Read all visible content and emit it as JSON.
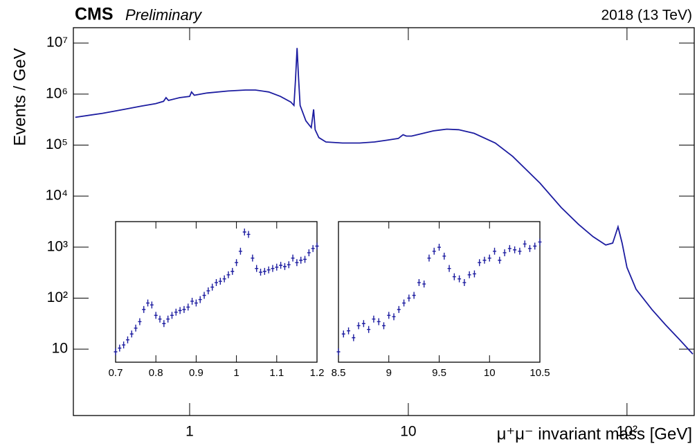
{
  "chart_data": [
    {
      "type": "line",
      "experiment": "CMS",
      "status": "Preliminary",
      "energy_label": "2018 (13 TeV)",
      "ylabel": "Events / GeV",
      "xlabel": "μ⁺μ⁻ invariant mass [GeV]",
      "color": "#1c1ca0",
      "xlog": true,
      "ylog": true,
      "xlim": [
        0.294,
        203
      ],
      "ylim": [
        0.5,
        20000000
      ],
      "xticks": [
        1,
        10,
        {
          "value": 100,
          "label": "10²"
        }
      ],
      "yticks": [
        10,
        {
          "value": 100,
          "label": "10²"
        },
        {
          "value": 1000,
          "label": "10³"
        },
        {
          "value": 10000,
          "label": "10⁴"
        },
        {
          "value": 100000,
          "label": "10⁵"
        },
        {
          "value": 1000000,
          "label": "10⁶"
        },
        {
          "value": 10000000,
          "label": "10⁷"
        }
      ],
      "x": [
        0.3,
        0.4,
        0.5,
        0.6,
        0.7,
        0.76,
        0.78,
        0.8,
        0.9,
        1.0,
        1.02,
        1.05,
        1.2,
        1.5,
        1.8,
        2.0,
        2.3,
        2.6,
        2.9,
        3.0,
        3.05,
        3.1,
        3.15,
        3.2,
        3.4,
        3.6,
        3.69,
        3.75,
        3.9,
        4.2,
        5,
        6,
        7,
        8,
        9,
        9.46,
        9.8,
        10.35,
        11,
        13,
        15,
        17,
        20,
        25,
        30,
        40,
        50,
        60,
        70,
        80,
        86,
        91,
        95,
        100,
        110,
        130,
        150,
        175,
        200
      ],
      "values": [
        350000,
        420000,
        500000,
        580000,
        650000,
        720000,
        850000,
        750000,
        850000,
        900000,
        1100000,
        950000,
        1050000,
        1150000,
        1200000,
        1200000,
        1100000,
        900000,
        700000,
        600000,
        2000000,
        8000000,
        2000000,
        600000,
        300000,
        220000,
        500000,
        200000,
        140000,
        115000,
        110000,
        110000,
        115000,
        125000,
        135000,
        160000,
        150000,
        150000,
        160000,
        190000,
        205000,
        200000,
        170000,
        110000,
        60000,
        18000,
        6000,
        2800,
        1600,
        1100,
        1200,
        2500,
        1200,
        400,
        150,
        60,
        30,
        15,
        8
      ]
    },
    {
      "type": "scatter",
      "color": "#1c1ca0",
      "xlog": false,
      "ylog": true,
      "xlim": [
        0.7,
        1.2
      ],
      "ylim": [
        3,
        3000
      ],
      "xticks": [
        0.7,
        0.8,
        0.9,
        1,
        1.1,
        1.2
      ],
      "x": [
        0.7,
        0.71,
        0.72,
        0.73,
        0.74,
        0.75,
        0.76,
        0.77,
        0.78,
        0.79,
        0.8,
        0.81,
        0.82,
        0.83,
        0.84,
        0.85,
        0.86,
        0.87,
        0.88,
        0.89,
        0.9,
        0.91,
        0.92,
        0.93,
        0.94,
        0.95,
        0.96,
        0.97,
        0.98,
        0.99,
        1.0,
        1.01,
        1.02,
        1.03,
        1.04,
        1.05,
        1.06,
        1.07,
        1.08,
        1.09,
        1.1,
        1.11,
        1.12,
        1.13,
        1.14,
        1.15,
        1.16,
        1.17,
        1.18,
        1.19,
        1.2
      ],
      "values": [
        5,
        6,
        7,
        9,
        12,
        16,
        22,
        40,
        55,
        50,
        30,
        25,
        20,
        25,
        30,
        35,
        38,
        40,
        45,
        60,
        55,
        65,
        80,
        100,
        120,
        150,
        160,
        180,
        220,
        260,
        400,
        700,
        1800,
        1600,
        500,
        300,
        250,
        260,
        280,
        300,
        320,
        350,
        330,
        360,
        500,
        400,
        450,
        470,
        650,
        800,
        900
      ]
    },
    {
      "type": "scatter",
      "color": "#1c1ca0",
      "xlog": false,
      "ylog": true,
      "xlim": [
        8.5,
        10.5
      ],
      "ylim": [
        3,
        3000
      ],
      "xticks": [
        8.5,
        9,
        9.5,
        10,
        10.5
      ],
      "x": [
        8.5,
        8.55,
        8.6,
        8.65,
        8.7,
        8.75,
        8.8,
        8.85,
        8.9,
        8.95,
        9.0,
        9.05,
        9.1,
        9.15,
        9.2,
        9.25,
        9.3,
        9.35,
        9.4,
        9.45,
        9.5,
        9.55,
        9.6,
        9.65,
        9.7,
        9.75,
        9.8,
        9.85,
        9.9,
        9.95,
        10.0,
        10.05,
        10.1,
        10.15,
        10.2,
        10.25,
        10.3,
        10.35,
        10.4,
        10.45,
        10.5
      ],
      "values": [
        5,
        12,
        14,
        10,
        18,
        20,
        15,
        25,
        22,
        18,
        30,
        28,
        40,
        55,
        70,
        80,
        150,
        140,
        500,
        700,
        850,
        550,
        300,
        200,
        180,
        150,
        220,
        230,
        400,
        450,
        500,
        700,
        450,
        650,
        800,
        750,
        700,
        1000,
        800,
        900,
        1100
      ]
    }
  ]
}
